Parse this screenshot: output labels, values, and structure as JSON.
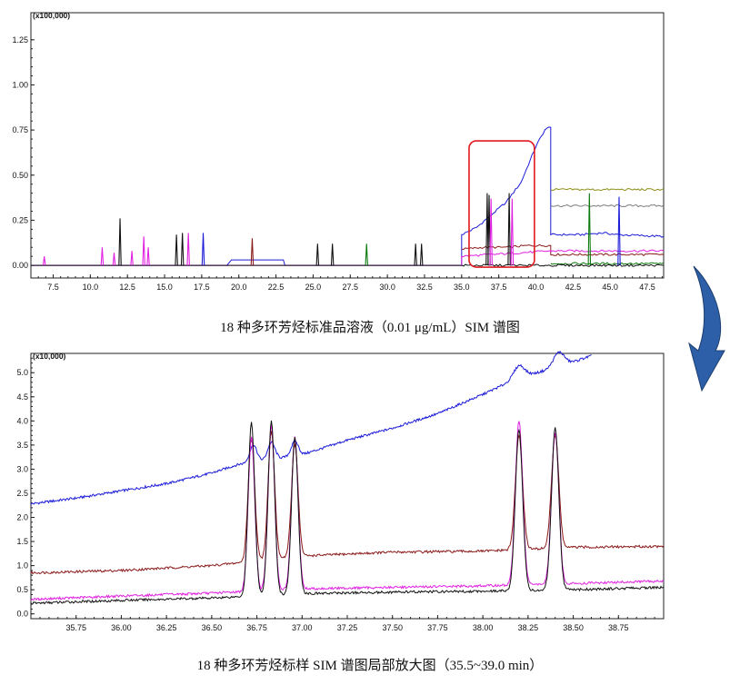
{
  "chart_data": [
    {
      "type": "line",
      "caption": "18 种多环芳烃标准品溶液（0.01 μg/mL）SIM 谱图",
      "multiplier": "(x100,000)",
      "xlim": [
        6.0,
        48.6
      ],
      "ylim": [
        -0.07,
        1.4
      ],
      "x_ticks": [
        "7.5",
        "10.0",
        "12.5",
        "15.0",
        "17.5",
        "20.0",
        "22.5",
        "25.0",
        "27.5",
        "30.0",
        "32.5",
        "35.0",
        "37.5",
        "40.0",
        "42.5",
        "45.0",
        "47.5"
      ],
      "y_ticks": [
        "0.00",
        "0.25",
        "0.50",
        "0.75",
        "1.00",
        "1.25"
      ],
      "highlight_box": {
        "x": [
          35.5,
          39.9
        ],
        "y": [
          -0.01,
          0.69
        ]
      },
      "series": [
        {
          "color": "#1c1cd8",
          "points": [
            [
              6.0,
              0.0
            ],
            [
              19.2,
              0.0
            ],
            [
              19.5,
              0.03
            ],
            [
              23.0,
              0.03
            ],
            [
              23.1,
              0.0
            ],
            [
              35.0,
              0.0
            ],
            [
              35.0,
              0.17
            ],
            [
              36.0,
              0.21
            ],
            [
              37.0,
              0.28
            ],
            [
              38.0,
              0.35
            ],
            [
              39.0,
              0.46
            ],
            [
              40.0,
              0.66
            ],
            [
              40.6,
              0.75
            ],
            [
              41.0,
              0.77
            ],
            [
              41.0,
              0.17
            ],
            [
              43.0,
              0.17
            ],
            [
              44.5,
              0.18
            ],
            [
              45.5,
              0.17
            ],
            [
              48.6,
              0.16
            ]
          ]
        },
        {
          "color": "#8b1a1a",
          "points": [
            [
              35.0,
              0.09
            ],
            [
              36.5,
              0.1
            ],
            [
              38.0,
              0.1
            ],
            [
              39.5,
              0.11
            ],
            [
              41.0,
              0.11
            ],
            [
              41.0,
              0.06
            ],
            [
              48.6,
              0.06
            ]
          ]
        },
        {
          "color": "#e020e0",
          "points": [
            [
              6.0,
              0.0
            ],
            [
              35.0,
              0.0
            ],
            [
              35.0,
              0.05
            ],
            [
              37.0,
              0.06
            ],
            [
              39.0,
              0.07
            ],
            [
              41.0,
              0.08
            ],
            [
              41.0,
              0.08
            ],
            [
              48.6,
              0.08
            ]
          ]
        },
        {
          "color": "#7e7e7e",
          "points": [
            [
              41.0,
              0.33
            ],
            [
              48.6,
              0.33
            ]
          ]
        },
        {
          "color": "#8e8e18",
          "points": [
            [
              41.0,
              0.42
            ],
            [
              48.6,
              0.42
            ]
          ]
        },
        {
          "color": "#0e7a0e",
          "points": [
            [
              41.0,
              0.01
            ],
            [
              48.6,
              0.01
            ]
          ]
        },
        {
          "color": "#111111",
          "points": [
            [
              6.0,
              0.0
            ],
            [
              48.6,
              0.0
            ]
          ]
        }
      ],
      "peaks": [
        {
          "x": 6.9,
          "h": 0.05,
          "color": "#e020e0"
        },
        {
          "x": 10.8,
          "h": 0.1,
          "color": "#e020e0"
        },
        {
          "x": 11.6,
          "h": 0.07,
          "color": "#e020e0"
        },
        {
          "x": 12.0,
          "h": 0.26,
          "color": "#111111"
        },
        {
          "x": 12.8,
          "h": 0.08,
          "color": "#e020e0"
        },
        {
          "x": 13.6,
          "h": 0.16,
          "color": "#e020e0"
        },
        {
          "x": 13.9,
          "h": 0.1,
          "color": "#e020e0"
        },
        {
          "x": 15.8,
          "h": 0.17,
          "color": "#111111"
        },
        {
          "x": 16.2,
          "h": 0.18,
          "color": "#111111"
        },
        {
          "x": 16.6,
          "h": 0.18,
          "color": "#e020e0"
        },
        {
          "x": 17.6,
          "h": 0.18,
          "color": "#1c1cd8"
        },
        {
          "x": 20.9,
          "h": 0.15,
          "color": "#8b1a1a"
        },
        {
          "x": 25.3,
          "h": 0.12,
          "color": "#111111"
        },
        {
          "x": 26.3,
          "h": 0.12,
          "color": "#111111"
        },
        {
          "x": 28.6,
          "h": 0.12,
          "color": "#0e7a0e"
        },
        {
          "x": 31.9,
          "h": 0.12,
          "color": "#111111"
        },
        {
          "x": 32.3,
          "h": 0.12,
          "color": "#111111"
        },
        {
          "x": 36.72,
          "h": 0.4,
          "color": "#111111"
        },
        {
          "x": 36.85,
          "h": 0.39,
          "color": "#111111"
        },
        {
          "x": 36.98,
          "h": 0.37,
          "color": "#e020e0"
        },
        {
          "x": 38.2,
          "h": 0.4,
          "color": "#111111"
        },
        {
          "x": 38.4,
          "h": 0.37,
          "color": "#e020e0"
        },
        {
          "x": 43.6,
          "h": 0.4,
          "color": "#0e7a0e"
        },
        {
          "x": 45.6,
          "h": 0.38,
          "color": "#1c1cd8"
        }
      ]
    },
    {
      "type": "line",
      "caption": "18 种多环芳烃标样 SIM 谱图局部放大图（35.5~39.0 min）",
      "multiplier": "(x10,000)",
      "xlim": [
        35.5,
        39.0
      ],
      "ylim": [
        -0.1,
        5.4
      ],
      "x_ticks": [
        "35.75",
        "36.00",
        "36.25",
        "36.50",
        "36.75",
        "37.00",
        "37.25",
        "37.50",
        "37.75",
        "38.00",
        "38.25",
        "38.50",
        "38.75"
      ],
      "y_ticks": [
        "0.0",
        "0.5",
        "1.0",
        "1.5",
        "2.0",
        "2.5",
        "3.0",
        "3.5",
        "4.0",
        "4.5",
        "5.0"
      ],
      "series": [
        {
          "color": "#1c1cd8",
          "baseline": [
            [
              35.5,
              2.28
            ],
            [
              35.75,
              2.4
            ],
            [
              36.0,
              2.55
            ],
            [
              36.25,
              2.7
            ],
            [
              36.5,
              2.92
            ],
            [
              36.65,
              3.1
            ],
            [
              37.0,
              3.3
            ],
            [
              37.25,
              3.6
            ],
            [
              37.5,
              3.85
            ],
            [
              37.75,
              4.15
            ],
            [
              38.0,
              4.55
            ],
            [
              38.2,
              4.9
            ],
            [
              38.4,
              5.1
            ],
            [
              38.6,
              5.35
            ]
          ],
          "peaks": [
            [
              36.73,
              0.35,
              0.02
            ],
            [
              36.83,
              0.35,
              0.02
            ],
            [
              36.96,
              0.3,
              0.02
            ],
            [
              38.2,
              0.25,
              0.03
            ],
            [
              38.42,
              0.3,
              0.03
            ]
          ]
        },
        {
          "color": "#8b1a1a",
          "baseline": [
            [
              35.5,
              0.85
            ],
            [
              36.0,
              0.9
            ],
            [
              36.5,
              1.0
            ],
            [
              37.0,
              1.2
            ],
            [
              37.5,
              1.28
            ],
            [
              38.0,
              1.3
            ],
            [
              38.5,
              1.38
            ],
            [
              39.0,
              1.4
            ]
          ],
          "peaks": [
            [
              36.72,
              2.55,
              0.018
            ],
            [
              36.83,
              2.65,
              0.018
            ],
            [
              36.96,
              2.35,
              0.018
            ],
            [
              38.2,
              2.35,
              0.02
            ],
            [
              38.4,
              2.35,
              0.02
            ]
          ]
        },
        {
          "color": "#e020e0",
          "baseline": [
            [
              35.5,
              0.3
            ],
            [
              36.0,
              0.37
            ],
            [
              36.5,
              0.43
            ],
            [
              37.0,
              0.52
            ],
            [
              37.5,
              0.55
            ],
            [
              38.0,
              0.58
            ],
            [
              38.5,
              0.63
            ],
            [
              39.0,
              0.68
            ]
          ],
          "peaks": [
            [
              36.72,
              3.2,
              0.018
            ],
            [
              36.83,
              3.4,
              0.018
            ],
            [
              36.96,
              3.15,
              0.018
            ],
            [
              38.2,
              3.4,
              0.02
            ],
            [
              38.4,
              3.15,
              0.02
            ]
          ]
        },
        {
          "color": "#111111",
          "baseline": [
            [
              35.5,
              0.22
            ],
            [
              36.0,
              0.28
            ],
            [
              36.5,
              0.33
            ],
            [
              37.0,
              0.42
            ],
            [
              37.5,
              0.45
            ],
            [
              38.0,
              0.47
            ],
            [
              38.5,
              0.5
            ],
            [
              39.0,
              0.55
            ]
          ],
          "peaks": [
            [
              36.72,
              3.6,
              0.018
            ],
            [
              36.83,
              3.6,
              0.018
            ],
            [
              36.96,
              3.25,
              0.018
            ],
            [
              38.2,
              3.35,
              0.02
            ],
            [
              38.4,
              3.35,
              0.02
            ]
          ]
        }
      ]
    }
  ]
}
